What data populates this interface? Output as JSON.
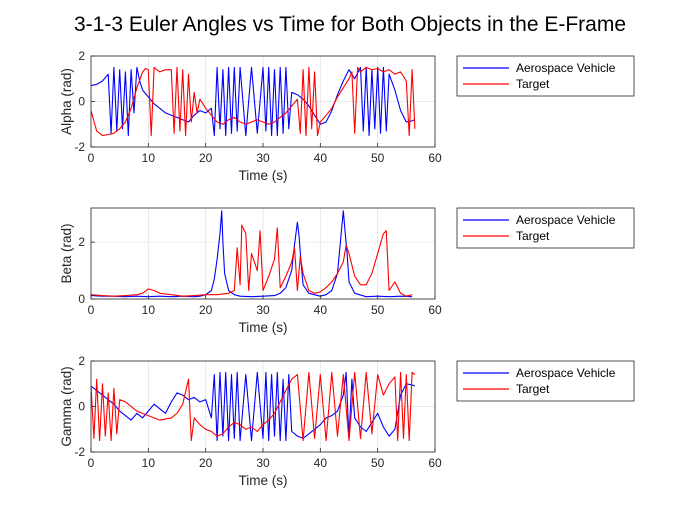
{
  "title": "3-1-3 Euler Angles vs Time for Both Objects in the E-Frame",
  "colors": {
    "vehicle": "#0000ff",
    "target": "#ff0000",
    "axis": "#262626",
    "grid": "#e3e3e3"
  },
  "chart_data": [
    {
      "type": "line",
      "xlabel": "Time (s)",
      "ylabel": "Alpha (rad)",
      "xlim": [
        0,
        60
      ],
      "ylim": [
        -2,
        2
      ],
      "xticks": [
        "0",
        "10",
        "20",
        "30",
        "40",
        "50",
        "60"
      ],
      "yticks": [
        "-2",
        "0",
        "2"
      ],
      "grid": true,
      "legend": "outside-right",
      "series": [
        {
          "name": "Aerospace Vehicle",
          "x": [
            0,
            1,
            2,
            3,
            3.5,
            4,
            4.5,
            5,
            5.5,
            6,
            6.5,
            7,
            7.5,
            8,
            8.5,
            9,
            10,
            11,
            12,
            13,
            14,
            15,
            16,
            17,
            18,
            19,
            20,
            21,
            21.5,
            22,
            22.5,
            23,
            23.5,
            24,
            24.5,
            25,
            25.5,
            26,
            27,
            28,
            29,
            30,
            30.5,
            31,
            31.5,
            32,
            32.5,
            33,
            33.5,
            34,
            34.5,
            35,
            36,
            37,
            38,
            39,
            40,
            41,
            42,
            43,
            44,
            45,
            46,
            47,
            47.5,
            48,
            48.5,
            49,
            49.5,
            50,
            50.5,
            51,
            51.5,
            52,
            53,
            54,
            55,
            56,
            56.5
          ],
          "y": [
            0.7,
            0.75,
            0.9,
            1.2,
            -1.4,
            1.5,
            -1.3,
            1.4,
            -1.2,
            1.3,
            -1.5,
            1.4,
            -0.5,
            1.5,
            0.9,
            0.5,
            0.2,
            -0.1,
            -0.3,
            -0.5,
            -0.6,
            -0.7,
            -0.8,
            -0.9,
            -0.6,
            -0.4,
            -0.5,
            -0.3,
            -1.5,
            1.5,
            -1.2,
            1.4,
            -1.5,
            1.5,
            -1.4,
            1.5,
            -1.3,
            1.5,
            -1.5,
            1.5,
            -1.4,
            1.5,
            -1.3,
            1.5,
            -1.5,
            1.4,
            -1.5,
            1.5,
            -1.4,
            1.5,
            -1.2,
            0.4,
            0.3,
            0.1,
            -0.2,
            -0.6,
            -1.0,
            -0.9,
            -0.4,
            0.3,
            0.9,
            1.4,
            1.0,
            1.5,
            -1.3,
            1.5,
            -1.5,
            1.4,
            -1.2,
            1.5,
            -1.4,
            1.5,
            -1.3,
            1.2,
            0.5,
            -0.4,
            -0.9,
            -0.85,
            -0.8
          ]
        },
        {
          "name": "Target",
          "x": [
            0,
            1,
            2,
            3,
            4,
            5,
            6,
            7,
            8,
            9,
            9.5,
            10,
            10.5,
            11,
            12,
            13,
            14,
            14.5,
            15,
            15.5,
            16,
            16.5,
            17,
            17.5,
            18,
            18.5,
            19,
            20,
            21,
            22,
            23,
            24,
            25,
            26,
            27,
            28,
            29,
            30,
            31,
            32,
            33,
            34,
            35,
            36,
            36.5,
            37,
            37.5,
            38,
            38.5,
            39,
            39.5,
            40,
            41,
            42,
            43,
            44,
            45,
            45.5,
            46,
            46.5,
            47,
            48,
            49,
            50,
            51,
            52,
            53,
            54,
            55,
            55.5,
            56,
            56.5
          ],
          "y": [
            -0.4,
            -1.3,
            -1.5,
            -1.45,
            -1.4,
            -1.2,
            -0.9,
            -0.3,
            0.6,
            1.3,
            1.45,
            1.4,
            -1.5,
            1.5,
            1.3,
            1.4,
            1.4,
            -1.4,
            1.5,
            -1.3,
            1.4,
            -1.5,
            1.2,
            -0.9,
            0.4,
            -0.5,
            0.1,
            -0.3,
            -0.6,
            -0.9,
            -1.0,
            -0.8,
            -0.7,
            -0.9,
            -1.0,
            -0.9,
            -0.8,
            -0.9,
            -1.0,
            -0.9,
            -0.7,
            -0.5,
            -0.2,
            0.1,
            -1.4,
            1.4,
            -1.5,
            1.5,
            -1.2,
            1.3,
            -1.5,
            -0.9,
            -0.6,
            -0.3,
            0.2,
            0.6,
            1.0,
            1.3,
            -1.4,
            1.5,
            1.3,
            1.5,
            1.4,
            1.45,
            1.3,
            1.4,
            1.2,
            1.3,
            0.9,
            -1.5,
            1.4,
            -1.2
          ]
        }
      ]
    },
    {
      "type": "line",
      "xlabel": "Time (s)",
      "ylabel": "Beta (rad)",
      "xlim": [
        0,
        60
      ],
      "ylim": [
        0,
        3.2
      ],
      "xticks": [
        "0",
        "10",
        "20",
        "30",
        "40",
        "50",
        "60"
      ],
      "yticks": [
        "0",
        "2"
      ],
      "grid": true,
      "legend": "outside-right",
      "series": [
        {
          "name": "Aerospace Vehicle",
          "x": [
            0,
            2,
            4,
            6,
            8,
            10,
            12,
            14,
            16,
            18,
            19,
            20,
            21,
            21.5,
            22,
            22.5,
            22.8,
            23,
            23.3,
            24,
            25,
            26,
            28,
            30,
            32,
            33,
            34,
            35,
            35.5,
            36,
            36.3,
            36.6,
            37,
            38,
            40,
            41,
            42,
            43,
            43.5,
            44,
            44.3,
            44.7,
            45,
            46,
            48,
            50,
            52,
            54,
            56
          ],
          "y": [
            0.12,
            0.1,
            0.1,
            0.08,
            0.1,
            0.08,
            0.1,
            0.08,
            0.1,
            0.08,
            0.1,
            0.15,
            0.3,
            0.7,
            1.4,
            2.3,
            3.1,
            2.0,
            0.9,
            0.3,
            0.15,
            0.1,
            0.08,
            0.1,
            0.12,
            0.2,
            0.4,
            1.0,
            1.9,
            2.7,
            2.2,
            1.4,
            0.5,
            0.2,
            0.1,
            0.15,
            0.3,
            0.9,
            2.0,
            3.1,
            2.4,
            1.5,
            0.6,
            0.2,
            0.08,
            0.1,
            0.08,
            0.1,
            0.08
          ]
        },
        {
          "name": "Target",
          "x": [
            0,
            2,
            4,
            6,
            8,
            9,
            10,
            11,
            12,
            14,
            16,
            18,
            20,
            22,
            24,
            25,
            25.5,
            26,
            26.3,
            27,
            27.5,
            28,
            29,
            29.5,
            30,
            31,
            32,
            32.5,
            33,
            34,
            35,
            35.5,
            36,
            36.5,
            37,
            38,
            39,
            40,
            41,
            42,
            43,
            44,
            44.5,
            45,
            46,
            47,
            48,
            49,
            50,
            51,
            51.5,
            52,
            53,
            54,
            55,
            56
          ],
          "y": [
            0.15,
            0.12,
            0.1,
            0.12,
            0.15,
            0.2,
            0.35,
            0.3,
            0.2,
            0.15,
            0.1,
            0.12,
            0.15,
            0.15,
            0.2,
            0.3,
            1.8,
            0.5,
            2.6,
            2.3,
            0.3,
            1.6,
            1.0,
            2.4,
            0.3,
            0.8,
            1.4,
            2.5,
            0.4,
            0.8,
            1.3,
            1.8,
            0.3,
            1.5,
            0.9,
            0.3,
            0.2,
            0.25,
            0.4,
            0.6,
            0.9,
            1.3,
            1.9,
            1.6,
            0.8,
            0.5,
            0.5,
            0.9,
            1.6,
            2.3,
            2.4,
            0.3,
            0.6,
            0.2,
            0.1,
            0.15
          ]
        }
      ]
    },
    {
      "type": "line",
      "xlabel": "Time (s)",
      "ylabel": "Gamma (rad)",
      "xlim": [
        0,
        60
      ],
      "ylim": [
        -2,
        2
      ],
      "xticks": [
        "0",
        "10",
        "20",
        "30",
        "40",
        "50",
        "60"
      ],
      "yticks": [
        "-2",
        "0",
        "2"
      ],
      "grid": true,
      "legend": "outside-right",
      "series": [
        {
          "name": "Aerospace Vehicle",
          "x": [
            0,
            1,
            2,
            3,
            4,
            5,
            6,
            7,
            8,
            9,
            10,
            11,
            12,
            13,
            14,
            15,
            16,
            17,
            18,
            19,
            20,
            21,
            21.5,
            22,
            22.5,
            23,
            23.5,
            24,
            24.5,
            25,
            25.5,
            26,
            27,
            28,
            29,
            30,
            30.5,
            31,
            31.5,
            32,
            32.5,
            33,
            33.5,
            34,
            34.5,
            35,
            36,
            37,
            38,
            39,
            40,
            41,
            42,
            43,
            44,
            44.5,
            45,
            45.5,
            46,
            47,
            48,
            49,
            50,
            51,
            52,
            53,
            54,
            55,
            56,
            56.5
          ],
          "y": [
            0.9,
            0.7,
            0.5,
            0.3,
            0.1,
            -0.2,
            -0.4,
            -0.6,
            -0.3,
            -0.5,
            -0.2,
            0.1,
            -0.1,
            -0.3,
            0.2,
            0.6,
            0.5,
            0.3,
            0.4,
            0.2,
            0.3,
            -0.5,
            1.4,
            -1.5,
            1.5,
            -1.3,
            1.5,
            -1.5,
            1.4,
            -1.4,
            1.5,
            -1.5,
            1.4,
            -1.5,
            1.5,
            -1.4,
            1.5,
            -1.5,
            1.4,
            -1.3,
            1.5,
            -1.5,
            1.2,
            -1.5,
            1.4,
            -1.1,
            -1.3,
            -1.4,
            -1.2,
            -1.0,
            -0.8,
            -0.5,
            -0.4,
            -0.2,
            0.5,
            1.5,
            -1.4,
            1.2,
            -0.5,
            -0.9,
            -1.1,
            -0.7,
            -0.3,
            -0.9,
            -1.3,
            -1.0,
            0.5,
            1.0,
            0.95,
            0.9
          ]
        },
        {
          "name": "Target",
          "x": [
            0,
            0.5,
            1,
            1.5,
            2,
            2.5,
            3,
            3.5,
            4,
            4.5,
            5,
            6,
            8,
            10,
            12,
            14,
            15,
            16,
            17,
            17.5,
            18,
            19,
            20,
            21,
            22,
            23,
            24,
            25,
            26,
            27,
            28,
            29,
            30,
            31,
            32,
            33,
            34,
            35,
            36,
            37,
            38,
            39,
            40,
            41,
            42,
            43,
            44,
            45,
            46,
            47,
            48,
            49,
            50,
            51,
            52,
            53,
            53.5,
            54,
            54.5,
            55,
            55.5,
            56,
            56.5
          ],
          "y": [
            0.9,
            -1.4,
            1.2,
            -1.5,
            1.0,
            -1.3,
            0.6,
            -1.5,
            0.8,
            -1.2,
            0.3,
            0.2,
            -0.2,
            -0.4,
            -0.6,
            -0.5,
            -0.3,
            0.1,
            1.2,
            -1.5,
            -0.5,
            -0.8,
            -1.0,
            -1.1,
            -1.3,
            -1.2,
            -0.9,
            -0.7,
            -0.8,
            -1.0,
            -0.9,
            -1.1,
            -0.8,
            -0.6,
            -0.3,
            0.2,
            0.7,
            1.2,
            1.4,
            -1.5,
            1.5,
            -1.4,
            1.4,
            -1.5,
            1.5,
            -1.3,
            1.4,
            -1.5,
            1.5,
            -1.4,
            1.5,
            -1.2,
            1.4,
            0.5,
            1.0,
            1.3,
            -1.5,
            1.5,
            -1.4,
            1.4,
            -1.5,
            1.5,
            1.4
          ]
        }
      ]
    }
  ]
}
